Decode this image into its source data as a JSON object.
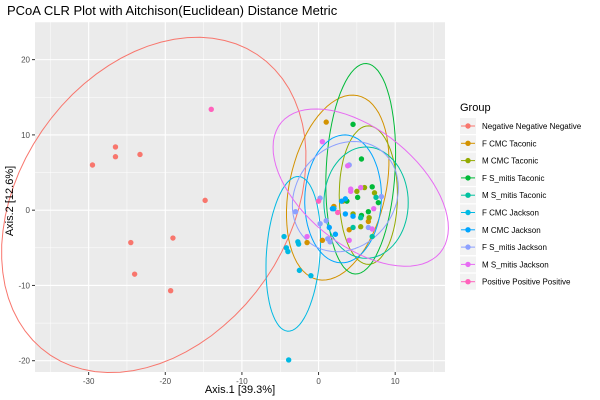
{
  "chart_data": {
    "type": "scatter",
    "title": "PCoA CLR Plot with Aitchison(Euclidean) Distance Metric",
    "xlabel": "Axis.1   [39.3%]",
    "ylabel": "Axis.2   [12.6%]",
    "xlim": [
      -37,
      16.5
    ],
    "ylim": [
      -21.5,
      25
    ],
    "x_ticks": [
      -30,
      -20,
      -10,
      0,
      10
    ],
    "y_ticks": [
      -20,
      -10,
      0,
      10,
      20
    ],
    "grid": true,
    "legend_position": "right",
    "legend_title": "Group",
    "series": [
      {
        "name": "Negative Negative Negative",
        "color": "#F8766D",
        "points": [
          [
            -29.5,
            6.0
          ],
          [
            -26.5,
            8.4
          ],
          [
            -26.5,
            7.1
          ],
          [
            -23.3,
            7.4
          ],
          [
            -24.5,
            -4.3
          ],
          [
            -24.0,
            -8.5
          ],
          [
            -19.0,
            -3.7
          ],
          [
            -19.3,
            -10.7
          ],
          [
            -14.8,
            1.3
          ]
        ],
        "ellipse": {
          "cx": -21.5,
          "cy": 0.7,
          "rx": 24.1,
          "ry": 17.6,
          "angle_deg": 56
        }
      },
      {
        "name": "F CMC Taconic",
        "color": "#D39200",
        "points": [
          [
            1.0,
            11.7
          ],
          [
            2.0,
            0.5
          ],
          [
            -1.5,
            -4.3
          ],
          [
            0.5,
            -4.0
          ],
          [
            4.0,
            -2.6
          ],
          [
            6.5,
            -1.5
          ],
          [
            3.2,
            1.2
          ]
        ],
        "ellipse": {
          "cx": 2.5,
          "cy": 3.0,
          "rx": 12.5,
          "ry": 6.3,
          "angle_deg": 78
        }
      },
      {
        "name": "M CMC Taconic",
        "color": "#93AA00",
        "points": [
          [
            5.0,
            2.5
          ],
          [
            4.5,
            -0.5
          ],
          [
            6.0,
            3.0
          ],
          [
            7.3,
            2.3
          ],
          [
            5.5,
            -2.2
          ],
          [
            6.6,
            -1.0
          ]
        ],
        "ellipse": {
          "cx": 6.5,
          "cy": 2.0,
          "rx": 9.2,
          "ry": 3.8,
          "angle_deg": 90
        }
      },
      {
        "name": "F S_mitis Taconic",
        "color": "#00BA38",
        "points": [
          [
            4.5,
            11.4
          ],
          [
            5.6,
            6.8
          ],
          [
            5.1,
            1.7
          ],
          [
            3.7,
            1.2
          ],
          [
            7.0,
            3.1
          ],
          [
            5.6,
            -0.7
          ],
          [
            7.8,
            1.0
          ],
          [
            6.5,
            -0.2
          ]
        ],
        "ellipse": {
          "cx": 5.5,
          "cy": 5.5,
          "rx": 14.0,
          "ry": 4.5,
          "angle_deg": 87
        }
      },
      {
        "name": "M S_mitis Taconic",
        "color": "#00C19F",
        "points": [
          [
            5.5,
            -1.0
          ],
          [
            4.5,
            -2.3
          ],
          [
            7.0,
            -3.5
          ],
          [
            7.5,
            1.7
          ]
        ],
        "ellipse": {
          "cx": 6.2,
          "cy": 1.0,
          "rx": 7.4,
          "ry": 5.5,
          "angle_deg": 90
        }
      },
      {
        "name": "F CMC Jackson",
        "color": "#00B9E3",
        "points": [
          [
            -4.5,
            -3.5
          ],
          [
            -4.2,
            -5.0
          ],
          [
            -4.0,
            -5.5
          ],
          [
            -2.7,
            -4.2
          ],
          [
            -2.6,
            -4.5
          ],
          [
            -1.0,
            -8.7
          ],
          [
            -2.5,
            -8.0
          ],
          [
            -3.9,
            -19.9
          ],
          [
            2.0,
            0.2
          ]
        ],
        "ellipse": {
          "cx": -3.3,
          "cy": -5.8,
          "rx": 10.3,
          "ry": 3.5,
          "angle_deg": 86
        }
      },
      {
        "name": "M CMC Jackson",
        "color": "#00A5FF",
        "points": [
          [
            1.8,
            0.2
          ],
          [
            3.0,
            1.2
          ],
          [
            3.5,
            -0.5
          ],
          [
            1.4,
            -2.3
          ],
          [
            2.2,
            -3.2
          ],
          [
            3.5,
            1.5
          ],
          [
            4.5,
            -0.8
          ]
        ],
        "ellipse": {
          "cx": 3.2,
          "cy": 1.5,
          "rx": 8.5,
          "ry": 5.0,
          "angle_deg": 88
        }
      },
      {
        "name": "F S_mitis Jackson",
        "color": "#8CA0FF",
        "points": [
          [
            -3.0,
            -0.2
          ],
          [
            0.2,
            1.6
          ],
          [
            1.0,
            -1.4
          ],
          [
            1.2,
            -3.8
          ],
          [
            1.5,
            -4.2
          ],
          [
            4.0,
            6.0
          ],
          [
            6.5,
            -2.3
          ],
          [
            8.2,
            1.8
          ],
          [
            0.2,
            -1.8
          ]
        ],
        "ellipse": {
          "cx": 3.5,
          "cy": 1.8,
          "rx": 7.7,
          "ry": 6.5,
          "angle_deg": 55
        }
      },
      {
        "name": "M S_mitis Jackson",
        "color": "#E76BF3",
        "points": [
          [
            0.5,
            9.1
          ],
          [
            3.8,
            5.9
          ],
          [
            4.2,
            2.5
          ],
          [
            4.2,
            2.8
          ],
          [
            5.5,
            3.0
          ],
          [
            7.2,
            0.2
          ],
          [
            -1.5,
            -3.5
          ],
          [
            4.0,
            -4.0
          ],
          [
            7.0,
            -2.5
          ]
        ],
        "ellipse": {
          "cx": 5.5,
          "cy": 3.0,
          "rx": 13.5,
          "ry": 7.6,
          "angle_deg": -40
        }
      },
      {
        "name": "Positive Positive Positive",
        "color": "#FF62BC",
        "points": [
          [
            -14.0,
            13.4
          ],
          [
            0.0,
            1.2
          ],
          [
            2.5,
            -0.3
          ]
        ]
      }
    ]
  }
}
